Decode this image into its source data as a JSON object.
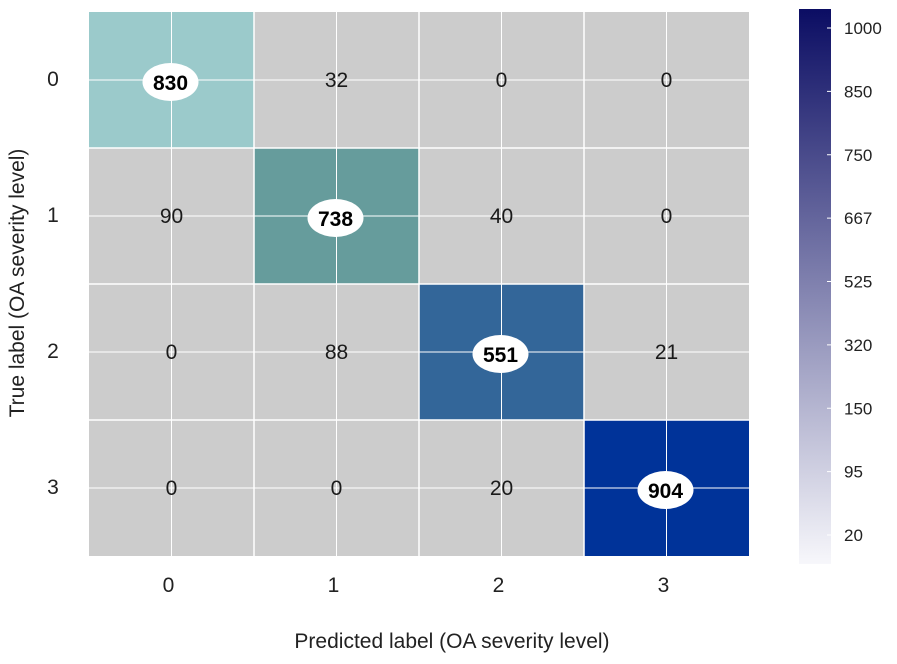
{
  "chart_data": {
    "type": "heatmap",
    "title": "",
    "xlabel": "Predicted label (OA severity level)",
    "ylabel": "True  label (OA severity level)",
    "x_categories": [
      "0",
      "1",
      "2",
      "3"
    ],
    "y_categories": [
      "0",
      "1",
      "2",
      "3"
    ],
    "matrix": [
      [
        830,
        32,
        0,
        0
      ],
      [
        90,
        738,
        40,
        0
      ],
      [
        0,
        88,
        551,
        21
      ],
      [
        0,
        0,
        20,
        904
      ]
    ],
    "highlight": "diagonal",
    "colorbar": {
      "tick_labels": [
        "1000",
        "850",
        "750",
        "667",
        "525",
        "320",
        "150",
        "95",
        "20"
      ],
      "color_low": "#f7f7fb",
      "color_high": "#0b0d63"
    },
    "colors": {
      "off_diagonal": "#cccccc",
      "grid": "#ffffff",
      "diagonal": [
        "#9bcacb",
        "#669c9c",
        "#336699",
        "#003399"
      ],
      "label_bubble": "#ffffff"
    },
    "grid": true
  }
}
